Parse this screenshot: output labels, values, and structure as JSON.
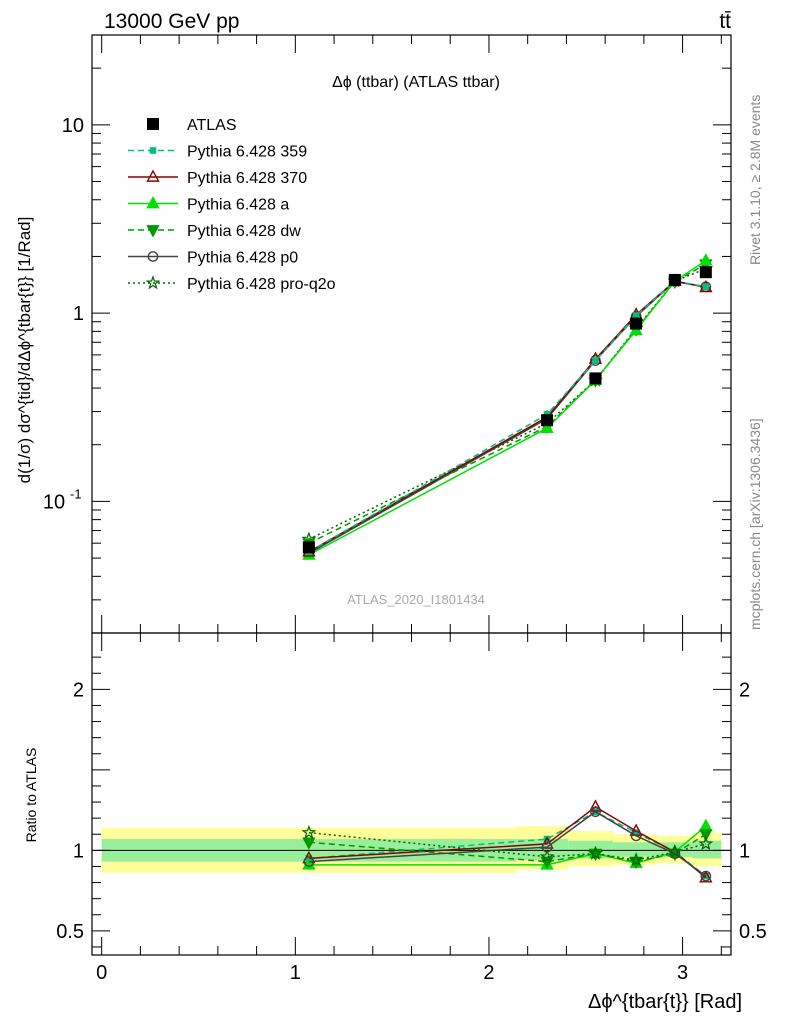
{
  "header": {
    "beam": "13000 GeV pp",
    "process": "tt̄"
  },
  "side_labels": {
    "rivet": "Rivet 3.1.10, ≥ 2.8M events",
    "mcplots": "mcplots.cern.ch [arXiv:1306.3436]"
  },
  "analysis_id": "ATLAS_2020_I1801434",
  "chart_data": [
    {
      "type": "line",
      "title": "Δϕ (ttbar) (ATLAS ttbar)",
      "ylabel": "d(1/σ) dσ^{tid}/dΔϕ^{tbar{t}} [1/Rad]",
      "yscale": "log",
      "ylim": [
        0.02,
        30
      ],
      "xlim": [
        -0.05,
        3.25
      ],
      "ytick_labels": [
        "10^{-1}",
        "1",
        "10"
      ],
      "legend_position": "top-left",
      "x": [
        1.07,
        2.3,
        2.55,
        2.76,
        2.96,
        3.12
      ],
      "series": [
        {
          "name": "ATLAS",
          "color": "#000000",
          "marker": "square-filled",
          "style": "none",
          "values": [
            0.057,
            0.27,
            0.45,
            0.88,
            1.5,
            1.65
          ]
        },
        {
          "name": "Pythia 6.428 359",
          "color": "#00bf7f",
          "marker": "square-small",
          "style": "dashed",
          "values": [
            0.054,
            0.29,
            0.56,
            0.97,
            1.48,
            1.38
          ]
        },
        {
          "name": "Pythia 6.428 370",
          "color": "#8b0000",
          "marker": "triangle-open",
          "style": "solid",
          "values": [
            0.054,
            0.28,
            0.57,
            0.98,
            1.48,
            1.37
          ]
        },
        {
          "name": "Pythia 6.428 a",
          "color": "#00e000",
          "marker": "triangle-filled",
          "style": "solid",
          "values": [
            0.052,
            0.245,
            0.44,
            0.81,
            1.48,
            1.9
          ]
        },
        {
          "name": "Pythia 6.428 dw",
          "color": "#009900",
          "marker": "triangle-down-filled",
          "style": "dashed",
          "values": [
            0.06,
            0.25,
            0.44,
            0.82,
            1.47,
            1.82
          ]
        },
        {
          "name": "Pythia 6.428 p0",
          "color": "#444444",
          "marker": "circle-open",
          "style": "solid",
          "values": [
            0.053,
            0.275,
            0.56,
            0.96,
            1.47,
            1.38
          ]
        },
        {
          "name": "Pythia 6.428 pro-q2o",
          "color": "#006600",
          "marker": "star-open",
          "style": "dotted",
          "values": [
            0.063,
            0.26,
            0.44,
            0.83,
            1.48,
            1.72
          ]
        }
      ]
    },
    {
      "type": "line",
      "ylabel": "Ratio to ATLAS",
      "xlabel": "Δϕ^{tbar{t}} [Rad]",
      "ylim": [
        0.35,
        2.35
      ],
      "xlim": [
        -0.05,
        3.25
      ],
      "xtick_labels": [
        "0",
        "1",
        "2",
        "3"
      ],
      "ytick_labels": [
        "0.5",
        "1",
        "2"
      ],
      "bands": {
        "stat_color": "#99ee99",
        "total_color": "#ffff99",
        "edges": [
          0.0,
          2.14,
          2.41,
          2.64,
          2.87,
          3.05,
          3.2
        ],
        "stat": [
          [
            0.93,
            1.07
          ],
          [
            0.94,
            1.07
          ],
          [
            0.95,
            1.06
          ],
          [
            0.96,
            1.05
          ],
          [
            0.96,
            1.05
          ],
          [
            0.95,
            1.06
          ]
        ],
        "total": [
          [
            0.86,
            1.14
          ],
          [
            0.88,
            1.15
          ],
          [
            0.9,
            1.12
          ],
          [
            0.91,
            1.1
          ],
          [
            0.92,
            1.09
          ],
          [
            0.9,
            1.11
          ]
        ]
      },
      "x": [
        1.07,
        2.3,
        2.55,
        2.76,
        2.96,
        3.12
      ],
      "series": [
        {
          "name": "Pythia 6.428 359",
          "values": [
            0.95,
            1.07,
            1.24,
            1.11,
            0.99,
            0.84
          ]
        },
        {
          "name": "Pythia 6.428 370",
          "values": [
            0.95,
            1.04,
            1.27,
            1.12,
            0.99,
            0.83
          ]
        },
        {
          "name": "Pythia 6.428 a",
          "values": [
            0.91,
            0.91,
            0.98,
            0.92,
            0.99,
            1.15
          ]
        },
        {
          "name": "Pythia 6.428 dw",
          "values": [
            1.05,
            0.93,
            0.98,
            0.93,
            0.98,
            1.1
          ]
        },
        {
          "name": "Pythia 6.428 p0",
          "values": [
            0.93,
            1.02,
            1.24,
            1.09,
            0.98,
            0.84
          ]
        },
        {
          "name": "Pythia 6.428 pro-q2o",
          "values": [
            1.11,
            0.96,
            0.98,
            0.94,
            0.99,
            1.04
          ]
        }
      ]
    }
  ]
}
